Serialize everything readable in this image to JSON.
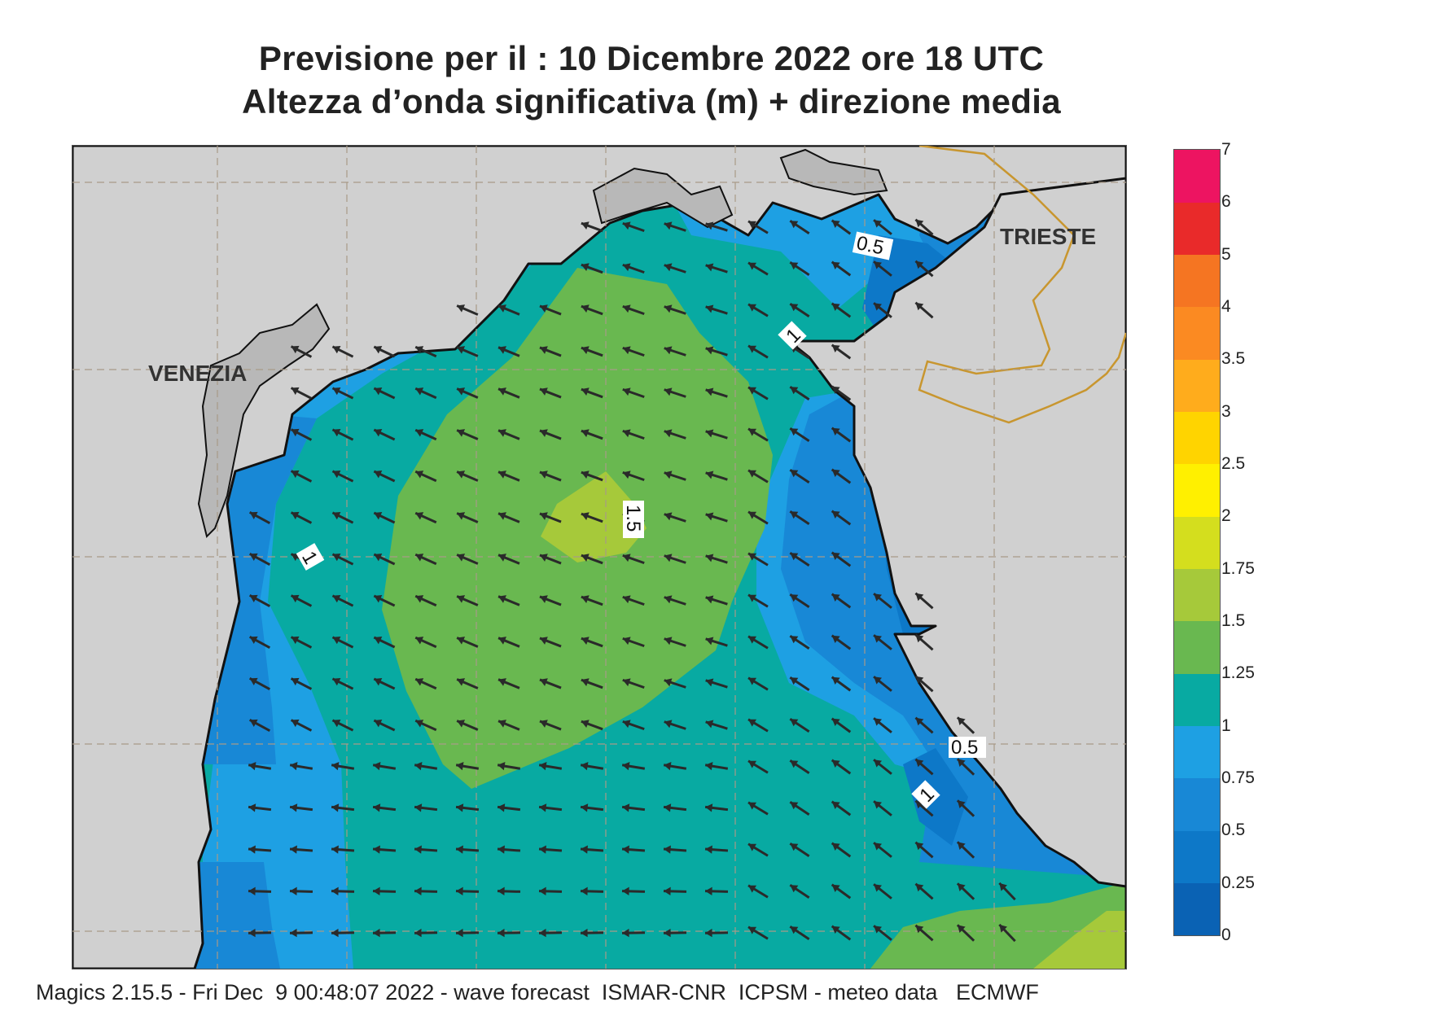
{
  "title_line1": "Previsione per il  :  10 Dicembre  2022   ore 18 UTC",
  "title_line2": "Altezza d’onda significativa (m) + direzione media",
  "footer": "Magics 2.15.5 - Fri Dec  9 00:48:07 2022 - wave forecast  ISMAR-CNR  ICPSM - meteo data   ECMWF",
  "cities": [
    {
      "name": "VENEZIA"
    },
    {
      "name": "TRIESTE"
    }
  ],
  "contour_labels": [
    "0.5",
    "1",
    "1.5",
    "1",
    "0.5",
    "1"
  ],
  "colorbar": {
    "levels": [
      "0",
      "0.25",
      "0.5",
      "0.75",
      "1",
      "1.25",
      "1.5",
      "1.75",
      "2",
      "2.5",
      "3",
      "3.5",
      "4",
      "5",
      "6",
      "7"
    ],
    "colors": [
      "#0a62b4",
      "#0d78c8",
      "#1888d6",
      "#1ea0e3",
      "#08aaa2",
      "#69b850",
      "#a6c93a",
      "#d4de1e",
      "#fff000",
      "#ffd400",
      "#ffac1c",
      "#fb8a22",
      "#f57522",
      "#e92a2a",
      "#ed1461"
    ]
  },
  "map_colors": {
    "land": "#d0d0d0",
    "lagoon": "#b8b8b8",
    "coast": "#111111",
    "border": "#c8962f",
    "grid": "#a89a88",
    "arrow": "#2a2a2a"
  }
}
